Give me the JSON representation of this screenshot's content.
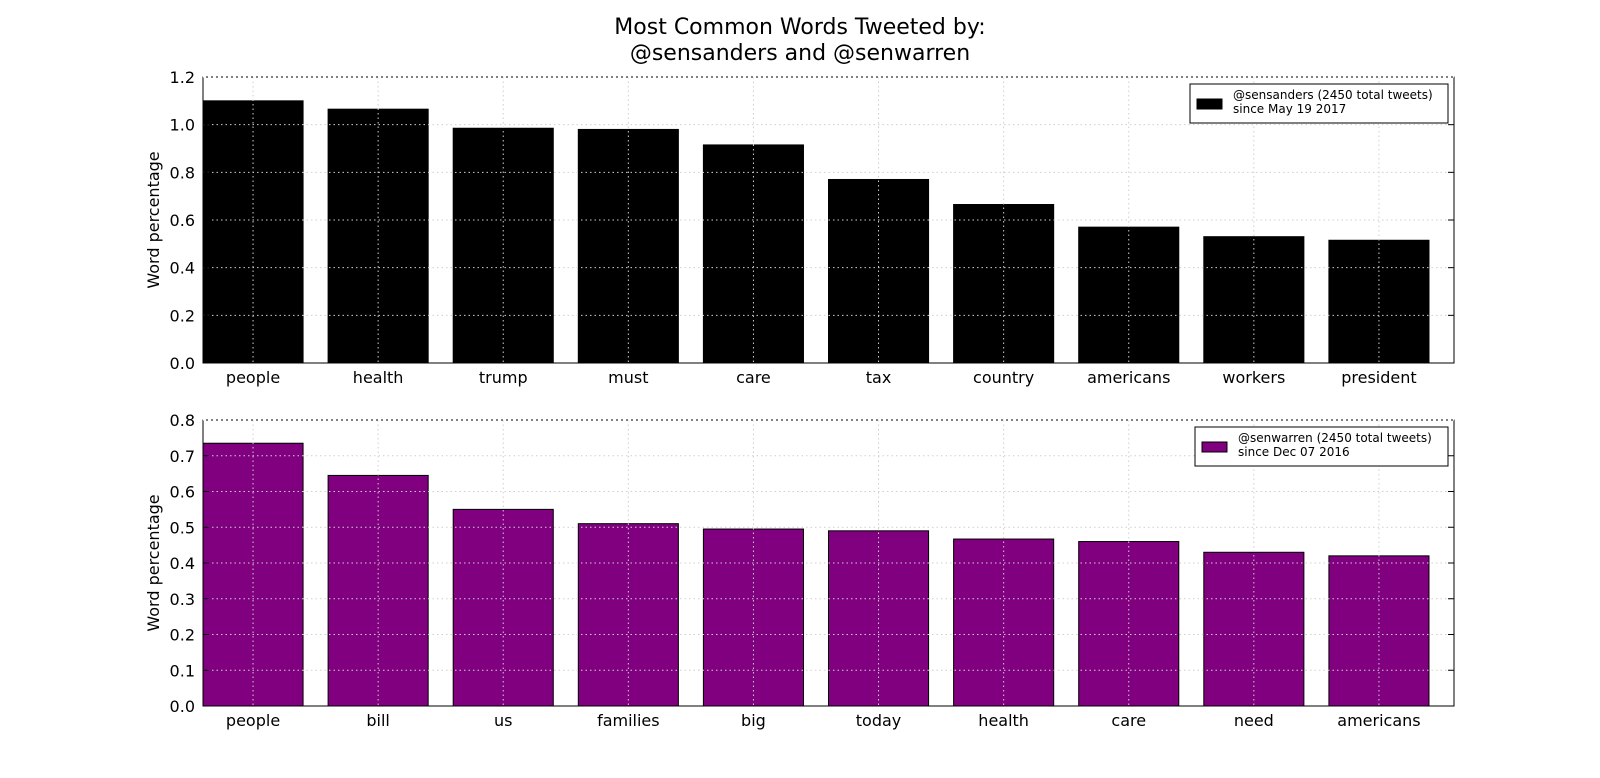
{
  "title_line1": "Most Common Words Tweeted by:",
  "title_line2": "@sensanders and @senwarren",
  "chart_data": [
    {
      "type": "bar",
      "ylabel": "Word percentage",
      "xlabel": "",
      "ylim": [
        0,
        1.2
      ],
      "yticks": [
        "0.0",
        "0.2",
        "0.4",
        "0.6",
        "0.8",
        "1.0",
        "1.2"
      ],
      "grid": true,
      "legend_position": "top-right",
      "bar_color": "#000000",
      "categories": [
        "people",
        "health",
        "trump",
        "must",
        "care",
        "tax",
        "country",
        "americans",
        "workers",
        "president"
      ],
      "series": [
        {
          "name": "@sensanders (2450 total tweets)\nsince May 19 2017",
          "legend_line1": "@sensanders (2450 total tweets)",
          "legend_line2": "since May 19 2017",
          "values": [
            1.1,
            1.065,
            0.985,
            0.98,
            0.915,
            0.77,
            0.665,
            0.57,
            0.53,
            0.515
          ]
        }
      ]
    },
    {
      "type": "bar",
      "ylabel": "Word percentage",
      "xlabel": "",
      "ylim": [
        0,
        0.8
      ],
      "yticks": [
        "0.0",
        "0.1",
        "0.2",
        "0.3",
        "0.4",
        "0.5",
        "0.6",
        "0.7",
        "0.8"
      ],
      "grid": true,
      "legend_position": "top-right",
      "bar_color": "#800080",
      "categories": [
        "people",
        "bill",
        "us",
        "families",
        "big",
        "today",
        "health",
        "care",
        "need",
        "americans"
      ],
      "series": [
        {
          "name": "@senwarren (2450 total tweets)\nsince Dec 07 2016",
          "legend_line1": "@senwarren (2450 total tweets)",
          "legend_line2": "since Dec 07 2016",
          "values": [
            0.735,
            0.645,
            0.55,
            0.51,
            0.495,
            0.49,
            0.467,
            0.46,
            0.43,
            0.42
          ]
        }
      ]
    }
  ]
}
